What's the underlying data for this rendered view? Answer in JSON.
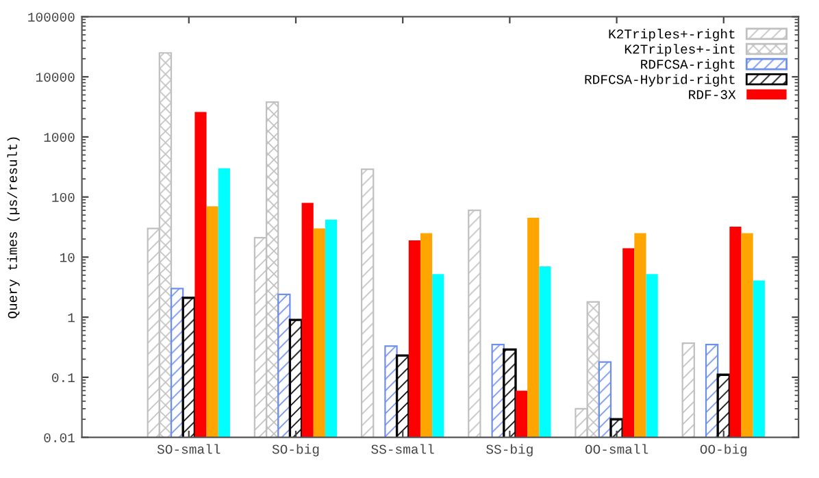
{
  "chart_data": {
    "type": "bar",
    "ylabel": "Query times (µs/result)",
    "log": true,
    "legend": "top right",
    "grid": false,
    "categories": [
      "SO-small",
      "SO-big",
      "SS-small",
      "SS-big",
      "OO-small",
      "OO-big"
    ],
    "ylim": [
      0.01,
      100000
    ],
    "yticks": [
      0.01,
      0.1,
      1,
      10,
      100,
      1000,
      10000,
      100000
    ],
    "series": [
      {
        "name": "K2Triples+-right",
        "color": "#c0c0c0",
        "values": [
          30,
          21,
          290,
          60,
          0.03,
          0.37
        ]
      },
      {
        "name": "K2Triples+-int",
        "color": "#c0c0c0",
        "values": [
          25000,
          3800,
          null,
          null,
          1.8,
          null
        ]
      },
      {
        "name": "RDFCSA-right",
        "color": "#6f8fef",
        "values": [
          3,
          2.4,
          0.33,
          0.35,
          0.18,
          0.35
        ]
      },
      {
        "name": "RDFCSA-Hybrid-right",
        "color": "#000000",
        "values": [
          2.1,
          0.9,
          0.23,
          0.29,
          0.02,
          0.11
        ]
      },
      {
        "name": "RDF-3X",
        "color": "#ff0000",
        "values": [
          2600,
          80,
          19,
          0.06,
          14,
          32
        ]
      },
      {
        "color": "#ffa500",
        "values": [
          70,
          30,
          25,
          45,
          25,
          25
        ]
      },
      {
        "color": "#00ffff",
        "values": [
          300,
          42,
          5.2,
          7,
          5.2,
          4.1
        ]
      }
    ]
  }
}
